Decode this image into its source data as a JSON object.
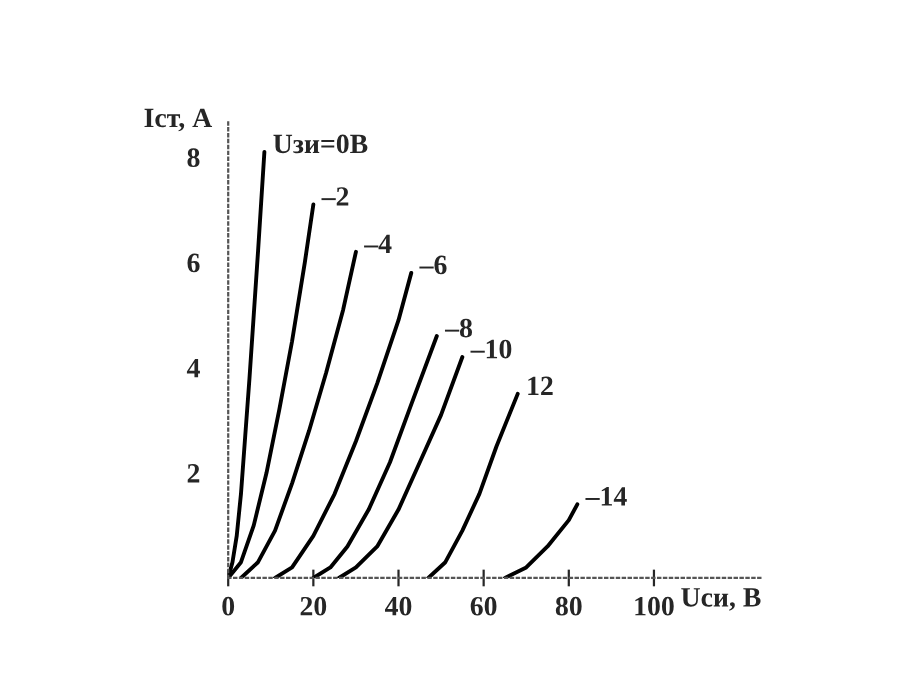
{
  "chart_data": {
    "type": "line",
    "xlabel": "Uси, В",
    "ylabel": "Iст, А",
    "xlim": [
      0,
      125
    ],
    "ylim": [
      0,
      8.7
    ],
    "xticks": [
      0,
      20,
      40,
      60,
      80,
      100
    ],
    "yticks": [
      2,
      4,
      6,
      8
    ],
    "grid": false,
    "legend": false,
    "marker": "none",
    "line_style": "solid",
    "series": [
      {
        "name": "Uзи=0В",
        "color": "#000000",
        "x": [
          0,
          1,
          2,
          3,
          4,
          5,
          6,
          7,
          8.5
        ],
        "values": [
          0,
          0.3,
          0.8,
          1.6,
          2.7,
          3.8,
          5.0,
          6.2,
          8.1
        ]
      },
      {
        "name": "–2",
        "color": "#000000",
        "x": [
          0,
          3,
          6,
          9,
          12,
          15,
          18,
          20
        ],
        "values": [
          0,
          0.3,
          1.0,
          2.0,
          3.2,
          4.5,
          6.0,
          7.1
        ]
      },
      {
        "name": "–4",
        "color": "#000000",
        "x": [
          3,
          7,
          11,
          15,
          19,
          23,
          27,
          30
        ],
        "values": [
          0,
          0.3,
          0.9,
          1.8,
          2.8,
          3.9,
          5.1,
          6.2
        ]
      },
      {
        "name": "–6",
        "color": "#000000",
        "x": [
          11,
          15,
          20,
          25,
          30,
          35,
          40,
          43
        ],
        "values": [
          0,
          0.2,
          0.8,
          1.6,
          2.6,
          3.7,
          4.9,
          5.8
        ]
      },
      {
        "name": "–8",
        "color": "#000000",
        "x": [
          20,
          24,
          28,
          33,
          38,
          43,
          49
        ],
        "values": [
          0,
          0.2,
          0.6,
          1.3,
          2.2,
          3.3,
          4.6
        ]
      },
      {
        "name": "–10",
        "color": "#000000",
        "x": [
          26,
          30,
          35,
          40,
          45,
          50,
          55
        ],
        "values": [
          0,
          0.2,
          0.6,
          1.3,
          2.2,
          3.1,
          4.2
        ]
      },
      {
        "name": "12",
        "color": "#000000",
        "x": [
          47,
          51,
          55,
          59,
          63,
          68
        ],
        "values": [
          0,
          0.3,
          0.9,
          1.6,
          2.5,
          3.5
        ]
      },
      {
        "name": "–14",
        "color": "#000000",
        "x": [
          65,
          70,
          75,
          80,
          82
        ],
        "values": [
          0,
          0.2,
          0.6,
          1.1,
          1.4
        ]
      }
    ]
  }
}
